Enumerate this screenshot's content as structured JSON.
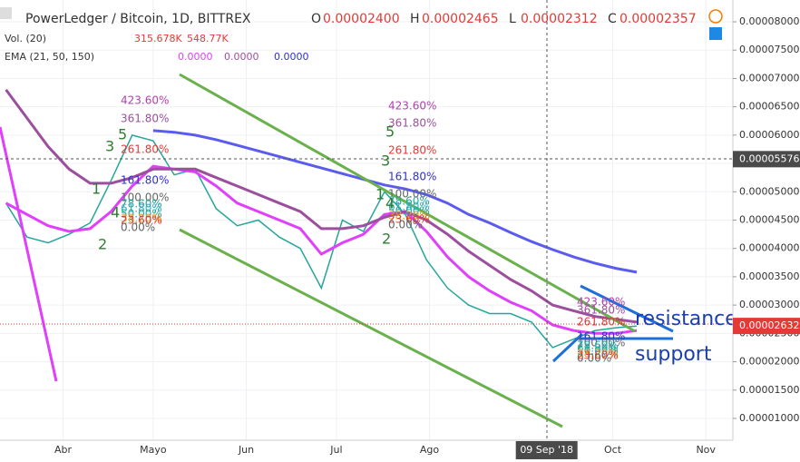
{
  "chart_data": {
    "type": "line",
    "title": "PowerLedger / Bitcoin, 1D, BITTREX",
    "ohlc": [
      {
        "label": "O",
        "value": "0.00002400"
      },
      {
        "label": "H",
        "value": "0.00002465"
      },
      {
        "label": "L",
        "value": "0.00002312"
      },
      {
        "label": "C",
        "value": "0.00002357"
      }
    ],
    "volume_legend": {
      "name": "Vol. (20)",
      "values": [
        "315.678K",
        "548.77K"
      ]
    },
    "ema_legend": {
      "name": "EMA (21, 50, 150)",
      "values": [
        "0.0000",
        "0.0000",
        "0.0000"
      ]
    },
    "x": [
      "2018-03-13",
      "2018-03-20",
      "2018-03-27",
      "2018-04-03",
      "2018-04-10",
      "2018-04-17",
      "2018-04-24",
      "2018-05-01",
      "2018-05-08",
      "2018-05-15",
      "2018-05-22",
      "2018-05-29",
      "2018-06-05",
      "2018-06-12",
      "2018-06-19",
      "2018-06-26",
      "2018-07-03",
      "2018-07-10",
      "2018-07-17",
      "2018-07-24",
      "2018-07-31",
      "2018-08-07",
      "2018-08-14",
      "2018-08-21",
      "2018-08-28",
      "2018-09-04",
      "2018-09-11",
      "2018-09-18",
      "2018-09-25",
      "2018-10-02",
      "2018-10-09"
    ],
    "series": [
      {
        "name": "Close",
        "color": "#26a69a",
        "x": null,
        "values": [
          4.8e-05,
          4.2e-05,
          4.1e-05,
          4.25e-05,
          4.45e-05,
          5.2e-05,
          6e-05,
          5.9e-05,
          5.3e-05,
          5.4e-05,
          4.7e-05,
          4.4e-05,
          4.5e-05,
          4.2e-05,
          4e-05,
          3.3e-05,
          4.5e-05,
          4.3e-05,
          5e-05,
          4.6e-05,
          3.8e-05,
          3.3e-05,
          3e-05,
          2.85e-05,
          2.85e-05,
          2.7e-05,
          2.25e-05,
          2.4e-05,
          2.55e-05,
          2.6e-05,
          2.63e-05
        ]
      },
      {
        "name": "EMA 21",
        "color": "#e040fb",
        "values": [
          4.8e-05,
          4.6e-05,
          4.4e-05,
          4.3e-05,
          4.35e-05,
          4.65e-05,
          5.1e-05,
          5.45e-05,
          5.4e-05,
          5.35e-05,
          5.1e-05,
          4.8e-05,
          4.65e-05,
          4.5e-05,
          4.35e-05,
          3.9e-05,
          4.1e-05,
          4.25e-05,
          4.6e-05,
          4.65e-05,
          4.3e-05,
          3.85e-05,
          3.5e-05,
          3.25e-05,
          3.05e-05,
          2.9e-05,
          2.65e-05,
          2.55e-05,
          2.5e-05,
          2.5e-05,
          2.55e-05
        ]
      },
      {
        "name": "EMA 50",
        "color": "#9c4f9c",
        "values": [
          6.8e-05,
          6.3e-05,
          5.8e-05,
          5.4e-05,
          5.15e-05,
          5.15e-05,
          5.25e-05,
          5.4e-05,
          5.4e-05,
          5.4e-05,
          5.25e-05,
          5.1e-05,
          4.95e-05,
          4.8e-05,
          4.65e-05,
          4.35e-05,
          4.35e-05,
          4.4e-05,
          4.55e-05,
          4.65e-05,
          4.5e-05,
          4.25e-05,
          3.95e-05,
          3.7e-05,
          3.45e-05,
          3.25e-05,
          3e-05,
          2.9e-05,
          2.8e-05,
          2.75e-05,
          2.7e-05
        ]
      },
      {
        "name": "EMA 150",
        "color": "#5b5bf0",
        "values": [
          null,
          null,
          null,
          null,
          null,
          null,
          null,
          6.08e-05,
          6.05e-05,
          6e-05,
          5.92e-05,
          5.82e-05,
          5.72e-05,
          5.62e-05,
          5.52e-05,
          5.42e-05,
          5.32e-05,
          5.22e-05,
          5.12e-05,
          5.05e-05,
          4.95e-05,
          4.8e-05,
          4.6e-05,
          4.45e-05,
          4.28e-05,
          4.12e-05,
          3.98e-05,
          3.85e-05,
          3.74e-05,
          3.65e-05,
          3.58e-05
        ]
      }
    ],
    "xlim": [
      "2018-03-11",
      "2018-11-10"
    ],
    "xticks": [
      {
        "value": "2018-04-01",
        "label": "Abr"
      },
      {
        "value": "2018-05-01",
        "label": "Mayo"
      },
      {
        "value": "2018-06-01",
        "label": "Jun"
      },
      {
        "value": "2018-07-01",
        "label": "Jul"
      },
      {
        "value": "2018-08-01",
        "label": "Ago"
      },
      {
        "value": "2018-10-01",
        "label": "Oct"
      },
      {
        "value": "2018-11-01",
        "label": "Nov"
      }
    ],
    "ylim": [
      6.15e-06,
      8.385e-05
    ],
    "yticks": [
      {
        "value": 8e-05,
        "label": "0.00008000"
      },
      {
        "value": 7.5e-05,
        "label": "0.00007500"
      },
      {
        "value": 7e-05,
        "label": "0.00007000"
      },
      {
        "value": 6.5e-05,
        "label": "0.00006500"
      },
      {
        "value": 6e-05,
        "label": "0.00006000"
      },
      {
        "value": 5.5e-05,
        "label": "0.00005500"
      },
      {
        "value": 5e-05,
        "label": "0.00005000"
      },
      {
        "value": 4.5e-05,
        "label": "0.00004500"
      },
      {
        "value": 4e-05,
        "label": "0.00004000"
      },
      {
        "value": 3.5e-05,
        "label": "0.00003500"
      },
      {
        "value": 3e-05,
        "label": "0.00003000"
      },
      {
        "value": 2.5e-05,
        "label": "0.00002500"
      },
      {
        "value": 2e-05,
        "label": "0.00002000"
      },
      {
        "value": 1.5e-05,
        "label": "0.00001500"
      },
      {
        "value": 1e-05,
        "label": "0.00001000"
      }
    ],
    "crosshair_price": {
      "value": 5.576e-05,
      "label": "0.00005576"
    },
    "last_price": {
      "value": 2.632e-05,
      "label": "0.00002632"
    },
    "crosshair_date": {
      "value": "2018-09-09",
      "label": "09 Sep '18"
    },
    "fib_labels": [
      "423.60%",
      "361.80%",
      "261.80%",
      "161.80%",
      "100.00%",
      "78.60%",
      "61.80%",
      "50.00%",
      "38.20%",
      "23.60%",
      "0.00%"
    ],
    "wave_labels": [
      "1",
      "2",
      "3",
      "4",
      "5"
    ],
    "annotations": [
      "resistance",
      "support"
    ],
    "grid": true
  }
}
